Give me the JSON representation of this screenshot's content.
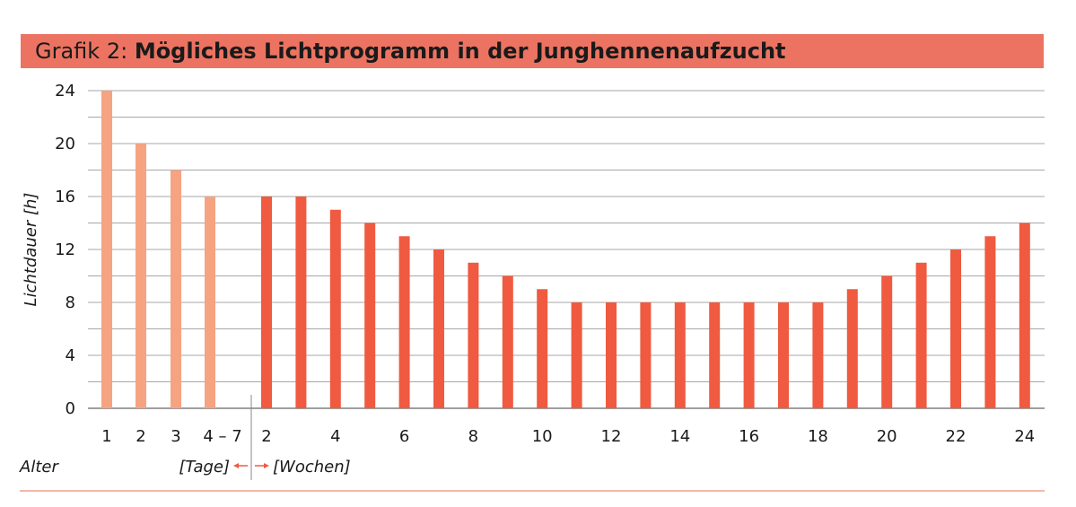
{
  "chart_data": {
    "type": "bar",
    "title_prefix": "Grafik 2:",
    "title": "Mögliches Lichtprogramm in der Junghennenaufzucht",
    "ylabel": "Lichtdauer [h]",
    "ylim": [
      0,
      24
    ],
    "y_ticks": [
      "0",
      "4",
      "8",
      "12",
      "16",
      "20",
      "24"
    ],
    "grid": true,
    "xlabel": "Alter",
    "x_unit_left": "[Tage]",
    "x_unit_right": "[Wochen]",
    "series": [
      {
        "name": "Tage",
        "color": "#f6a382",
        "categories": [
          "1",
          "2",
          "3",
          "4–7"
        ],
        "values": [
          24,
          20,
          18,
          16
        ]
      },
      {
        "name": "Wochen",
        "color": "#ef5a40",
        "categories": [
          "2",
          "3",
          "4",
          "5",
          "6",
          "7",
          "8",
          "9",
          "10",
          "11",
          "12",
          "13",
          "14",
          "15",
          "16",
          "17",
          "18",
          "19",
          "20",
          "21",
          "22",
          "23",
          "24"
        ],
        "values": [
          16,
          16,
          15,
          14,
          13,
          12,
          11,
          10,
          9,
          8,
          8,
          8,
          8,
          8,
          8,
          8,
          8,
          9,
          10,
          11,
          12,
          13,
          14
        ]
      }
    ],
    "x_tick_labels_tage": [
      "1",
      "2",
      "3",
      "4 – 7"
    ],
    "x_tick_labels_wochen": [
      "2",
      "4",
      "6",
      "8",
      "10",
      "12",
      "14",
      "16",
      "18",
      "20",
      "22",
      "24"
    ],
    "arrow_color": "#ef5a40"
  }
}
